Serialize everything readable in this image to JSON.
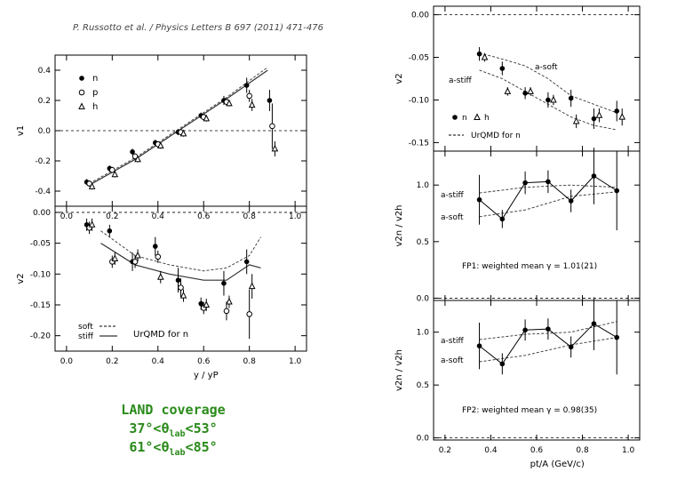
{
  "citation": "P. Russotto et al. / Physics Letters B 697 (2011) 471-476",
  "land": {
    "title": "LAND coverage",
    "range1": "37°<θlab<53°",
    "range2": "61°<θlab<85°"
  },
  "colors": {
    "text_green": "#2a8a1a"
  },
  "chart_data": [
    {
      "id": "left_v1",
      "type": "scatter",
      "ylabel": "v1",
      "xlim": [
        -0.05,
        1.05
      ],
      "ylim": [
        -0.5,
        0.5
      ],
      "xticks": [
        0.0,
        0.2,
        0.4,
        0.6,
        0.8,
        1.0
      ],
      "yticks": [
        -0.4,
        -0.2,
        0.0,
        0.2,
        0.4
      ],
      "legend": [
        "n",
        "p",
        "h"
      ],
      "legend_position": "top-left",
      "series": [
        {
          "name": "n",
          "marker": "filled",
          "x": [
            0.1,
            0.2,
            0.3,
            0.4,
            0.5,
            0.6,
            0.7,
            0.8,
            0.9
          ],
          "y": [
            -0.34,
            -0.25,
            -0.14,
            -0.08,
            -0.01,
            0.1,
            0.2,
            0.3,
            0.2
          ],
          "err": [
            0.02,
            0.02,
            0.02,
            0.02,
            0.02,
            0.02,
            0.03,
            0.05,
            0.07
          ]
        },
        {
          "name": "p",
          "marker": "open",
          "x": [
            0.1,
            0.2,
            0.3,
            0.4,
            0.5,
            0.6,
            0.7,
            0.8,
            0.9
          ],
          "y": [
            -0.35,
            -0.26,
            -0.17,
            -0.09,
            -0.01,
            0.09,
            0.19,
            0.23,
            0.03
          ],
          "err": [
            0.02,
            0.02,
            0.02,
            0.02,
            0.02,
            0.02,
            0.02,
            0.04,
            0.15
          ]
        },
        {
          "name": "h",
          "marker": "triangle",
          "x": [
            0.1,
            0.2,
            0.3,
            0.4,
            0.5,
            0.6,
            0.7,
            0.8,
            0.9
          ],
          "y": [
            -0.37,
            -0.29,
            -0.19,
            -0.1,
            -0.02,
            0.08,
            0.18,
            0.17,
            -0.12
          ],
          "err": [
            0.02,
            0.02,
            0.02,
            0.02,
            0.02,
            0.02,
            0.02,
            0.04,
            0.05
          ]
        }
      ],
      "curves": [
        {
          "name": "UrQMD soft",
          "style": "dashed",
          "x": [
            0.1,
            0.3,
            0.5,
            0.7,
            0.88
          ],
          "y": [
            -0.35,
            -0.18,
            0.02,
            0.22,
            0.42
          ]
        },
        {
          "name": "UrQMD stiff",
          "style": "solid",
          "x": [
            0.1,
            0.3,
            0.5,
            0.7,
            0.88
          ],
          "y": [
            -0.36,
            -0.19,
            0.01,
            0.21,
            0.4
          ]
        }
      ]
    },
    {
      "id": "left_v2",
      "type": "scatter",
      "xlabel": "y / yP",
      "ylabel": "v2",
      "xlim": [
        -0.05,
        1.05
      ],
      "ylim": [
        -0.225,
        0.01
      ],
      "xticks": [
        0.0,
        0.2,
        0.4,
        0.6,
        0.8,
        1.0
      ],
      "yticks": [
        0.0,
        -0.05,
        -0.1,
        -0.15,
        -0.2
      ],
      "legend": [
        "soft",
        "stiff",
        "UrQMD  for  n"
      ],
      "legend_position": "bottom-left",
      "series": [
        {
          "name": "n",
          "marker": "filled",
          "x": [
            0.1,
            0.2,
            0.3,
            0.4,
            0.5,
            0.6,
            0.7,
            0.8
          ],
          "y": [
            -0.02,
            -0.03,
            -0.08,
            -0.055,
            -0.11,
            -0.148,
            -0.115,
            -0.08
          ],
          "err": [
            0.01,
            0.01,
            0.015,
            0.015,
            0.02,
            0.01,
            0.02,
            0.02
          ]
        },
        {
          "name": "p",
          "marker": "open",
          "x": [
            0.1,
            0.2,
            0.3,
            0.4,
            0.5,
            0.6,
            0.7,
            0.8
          ],
          "y": [
            -0.025,
            -0.08,
            -0.08,
            -0.072,
            -0.122,
            -0.155,
            -0.16,
            -0.165
          ],
          "err": [
            0.01,
            0.01,
            0.01,
            0.01,
            0.015,
            0.01,
            0.015,
            0.04
          ]
        },
        {
          "name": "h",
          "marker": "triangle",
          "x": [
            0.1,
            0.2,
            0.3,
            0.4,
            0.5,
            0.6,
            0.7,
            0.8
          ],
          "y": [
            -0.02,
            -0.075,
            -0.07,
            -0.105,
            -0.135,
            -0.15,
            -0.145,
            -0.12
          ],
          "err": [
            0.01,
            0.01,
            0.01,
            0.01,
            0.01,
            0.01,
            0.01,
            0.02
          ]
        }
      ],
      "curves": [
        {
          "name": "soft",
          "style": "dashed",
          "x": [
            0.15,
            0.3,
            0.45,
            0.6,
            0.7,
            0.8,
            0.85
          ],
          "y": [
            -0.03,
            -0.07,
            -0.085,
            -0.095,
            -0.09,
            -0.07,
            -0.04
          ]
        },
        {
          "name": "stiff",
          "style": "solid",
          "x": [
            0.15,
            0.3,
            0.45,
            0.6,
            0.7,
            0.8,
            0.85
          ],
          "y": [
            -0.05,
            -0.085,
            -0.1,
            -0.11,
            -0.11,
            -0.085,
            -0.09
          ]
        }
      ]
    },
    {
      "id": "right_v2",
      "type": "scatter",
      "ylabel": "v2",
      "xlim": [
        0.15,
        1.05
      ],
      "ylim": [
        -0.16,
        0.01
      ],
      "yticks": [
        0.0,
        -0.05,
        -0.1,
        -0.15
      ],
      "legend": [
        "n",
        "h",
        "UrQMD  for  n"
      ],
      "legend_position": "bottom-left",
      "annotations": [
        "a-soft",
        "a-stiff"
      ],
      "series": [
        {
          "name": "n",
          "marker": "filled",
          "x": [
            0.35,
            0.45,
            0.55,
            0.65,
            0.75,
            0.85,
            0.95
          ],
          "y": [
            -0.046,
            -0.063,
            -0.092,
            -0.1,
            -0.098,
            -0.122,
            -0.113
          ],
          "err": [
            0.008,
            0.008,
            0.007,
            0.009,
            0.01,
            0.012,
            0.012
          ]
        },
        {
          "name": "h",
          "marker": "triangle",
          "x": [
            0.35,
            0.45,
            0.55,
            0.65,
            0.75,
            0.85,
            0.95
          ],
          "y": [
            -0.05,
            -0.09,
            -0.09,
            -0.1,
            -0.125,
            -0.118,
            -0.12
          ],
          "err": [
            0.005,
            0.005,
            0.005,
            0.006,
            0.008,
            0.008,
            0.01
          ]
        }
      ],
      "curves": [
        {
          "name": "a-soft",
          "style": "dashed",
          "x": [
            0.35,
            0.45,
            0.55,
            0.65,
            0.75,
            0.85,
            0.95
          ],
          "y": [
            -0.045,
            -0.052,
            -0.06,
            -0.075,
            -0.095,
            -0.105,
            -0.115
          ]
        },
        {
          "name": "a-stiff",
          "style": "dashed",
          "x": [
            0.35,
            0.45,
            0.55,
            0.65,
            0.75,
            0.85,
            0.95
          ],
          "y": [
            -0.065,
            -0.075,
            -0.09,
            -0.105,
            -0.12,
            -0.13,
            -0.135
          ]
        }
      ]
    },
    {
      "id": "right_fp1",
      "type": "line",
      "ylabel": "v2n / v2h",
      "xlim": [
        0.15,
        1.05
      ],
      "ylim": [
        -0.02,
        1.3
      ],
      "yticks": [
        0.0,
        0.5,
        1.0
      ],
      "annotation": "FP1:  weighted mean  γ  =  1.01(21)",
      "series": [
        {
          "name": "ratio",
          "marker": "filled",
          "x": [
            0.35,
            0.45,
            0.55,
            0.65,
            0.75,
            0.85,
            0.95
          ],
          "y": [
            0.87,
            0.7,
            1.02,
            1.03,
            0.86,
            1.08,
            0.95
          ],
          "err": [
            0.22,
            0.08,
            0.1,
            0.1,
            0.1,
            0.25,
            0.35
          ]
        }
      ],
      "curves": [
        {
          "name": "a-stiff",
          "style": "dashed",
          "x": [
            0.35,
            0.55,
            0.75,
            0.95
          ],
          "y": [
            0.93,
            0.98,
            1.0,
            0.98
          ]
        },
        {
          "name": "a-soft",
          "style": "dashed",
          "x": [
            0.35,
            0.55,
            0.75,
            0.95
          ],
          "y": [
            0.72,
            0.78,
            0.9,
            0.94
          ]
        }
      ]
    },
    {
      "id": "right_fp2",
      "type": "line",
      "xlabel": "pt/A  (GeV/c)",
      "ylabel": "v2n / v2h",
      "xlim": [
        0.15,
        1.05
      ],
      "ylim": [
        -0.02,
        1.3
      ],
      "xticks": [
        0.2,
        0.4,
        0.6,
        0.8,
        1.0
      ],
      "yticks": [
        0.0,
        0.5,
        1.0
      ],
      "annotation": "FP2:  weighted mean  γ  =  0.98(35)",
      "series": [
        {
          "name": "ratio",
          "marker": "filled",
          "x": [
            0.35,
            0.45,
            0.55,
            0.65,
            0.75,
            0.85,
            0.95
          ],
          "y": [
            0.87,
            0.7,
            1.02,
            1.03,
            0.86,
            1.08,
            0.95
          ],
          "err": [
            0.22,
            0.1,
            0.1,
            0.1,
            0.1,
            0.25,
            0.35
          ]
        }
      ],
      "curves": [
        {
          "name": "a-stiff",
          "style": "dashed",
          "x": [
            0.35,
            0.55,
            0.75,
            0.95
          ],
          "y": [
            0.93,
            0.98,
            1.0,
            1.1
          ]
        },
        {
          "name": "a-soft",
          "style": "dashed",
          "x": [
            0.35,
            0.55,
            0.75,
            0.95
          ],
          "y": [
            0.72,
            0.78,
            0.88,
            0.95
          ]
        }
      ]
    }
  ]
}
